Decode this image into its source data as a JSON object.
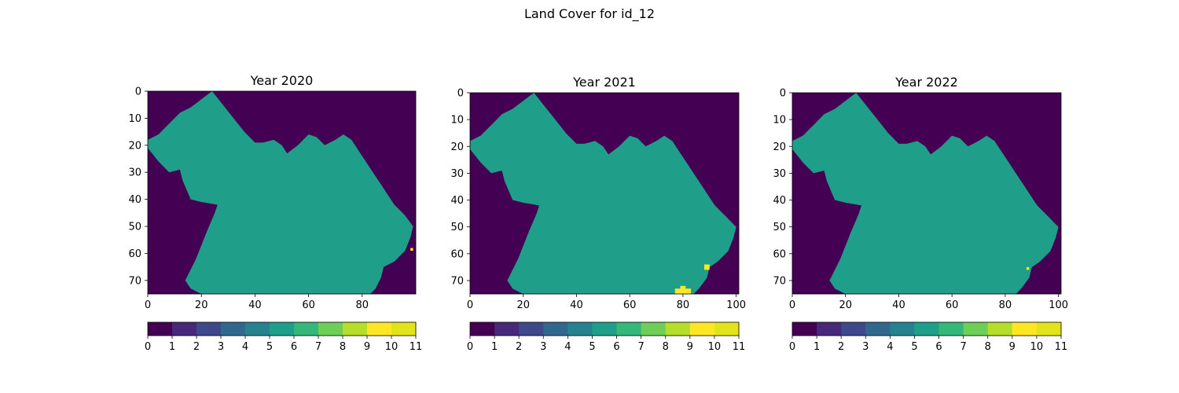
{
  "figure_title": "Land Cover for id_12",
  "chart_data": [
    {
      "type": "heatmap",
      "title": "Year 2020",
      "xlim": [
        0,
        100
      ],
      "ylim": [
        75,
        0
      ],
      "xticks": [
        0,
        20,
        40,
        60,
        80
      ],
      "yticks": [
        0,
        10,
        20,
        30,
        40,
        50,
        60,
        70
      ],
      "background_class": 0,
      "region_class": 5,
      "region_outline": [
        [
          24,
          0
        ],
        [
          28,
          5
        ],
        [
          32,
          10
        ],
        [
          36,
          15
        ],
        [
          40,
          19
        ],
        [
          43,
          19
        ],
        [
          47,
          18
        ],
        [
          50,
          20
        ],
        [
          52,
          23
        ],
        [
          56,
          20
        ],
        [
          60,
          16
        ],
        [
          63,
          17
        ],
        [
          66,
          20
        ],
        [
          70,
          18
        ],
        [
          73,
          16
        ],
        [
          76,
          18
        ],
        [
          80,
          24
        ],
        [
          84,
          30
        ],
        [
          88,
          36
        ],
        [
          92,
          42
        ],
        [
          96,
          46
        ],
        [
          99,
          50
        ],
        [
          98,
          54
        ],
        [
          96,
          59
        ],
        [
          92,
          63
        ],
        [
          88,
          65
        ],
        [
          87,
          69
        ],
        [
          85,
          73
        ],
        [
          83,
          75
        ],
        [
          20,
          75
        ],
        [
          16,
          73
        ],
        [
          14,
          70
        ],
        [
          18,
          62
        ],
        [
          22,
          52
        ],
        [
          25,
          45
        ],
        [
          26,
          42
        ],
        [
          20,
          41
        ],
        [
          16,
          40
        ],
        [
          13,
          33
        ],
        [
          12,
          29
        ],
        [
          8,
          30
        ],
        [
          4,
          26
        ],
        [
          0,
          21
        ],
        [
          0,
          18
        ],
        [
          4,
          16
        ],
        [
          8,
          12
        ],
        [
          12,
          8
        ],
        [
          16,
          6
        ],
        [
          20,
          3
        ]
      ],
      "highlights": [
        {
          "x": 98,
          "y": 58,
          "w": 1,
          "h": 1,
          "class": 10
        }
      ],
      "colorbar": {
        "ticks": [
          0,
          1,
          2,
          3,
          4,
          5,
          6,
          7,
          8,
          9,
          10,
          11
        ],
        "min": 0,
        "max": 11
      }
    },
    {
      "type": "heatmap",
      "title": "Year 2021",
      "xlim": [
        0,
        101
      ],
      "ylim": [
        75,
        0
      ],
      "xticks": [
        0,
        20,
        40,
        60,
        80,
        100
      ],
      "yticks": [
        0,
        10,
        20,
        30,
        40,
        50,
        60,
        70
      ],
      "background_class": 0,
      "region_class": 5,
      "region_outline": [
        [
          24,
          0
        ],
        [
          28,
          5
        ],
        [
          32,
          10
        ],
        [
          36,
          15
        ],
        [
          40,
          19
        ],
        [
          43,
          19
        ],
        [
          47,
          18
        ],
        [
          50,
          20
        ],
        [
          52,
          23
        ],
        [
          56,
          20
        ],
        [
          60,
          16
        ],
        [
          63,
          17
        ],
        [
          66,
          20
        ],
        [
          70,
          18
        ],
        [
          73,
          16
        ],
        [
          76,
          18
        ],
        [
          80,
          24
        ],
        [
          84,
          30
        ],
        [
          88,
          36
        ],
        [
          92,
          42
        ],
        [
          96,
          46
        ],
        [
          100,
          50
        ],
        [
          99,
          54
        ],
        [
          97,
          59
        ],
        [
          93,
          63
        ],
        [
          90,
          65
        ],
        [
          89,
          69
        ],
        [
          86,
          73
        ],
        [
          84,
          75
        ],
        [
          20,
          75
        ],
        [
          16,
          73
        ],
        [
          14,
          70
        ],
        [
          18,
          62
        ],
        [
          22,
          52
        ],
        [
          25,
          45
        ],
        [
          26,
          42
        ],
        [
          20,
          41
        ],
        [
          16,
          40
        ],
        [
          13,
          33
        ],
        [
          12,
          29
        ],
        [
          8,
          30
        ],
        [
          4,
          26
        ],
        [
          0,
          21
        ],
        [
          0,
          18
        ],
        [
          4,
          16
        ],
        [
          8,
          12
        ],
        [
          12,
          8
        ],
        [
          16,
          6
        ],
        [
          20,
          3
        ]
      ],
      "highlights": [
        {
          "x": 88,
          "y": 64,
          "w": 2,
          "h": 2,
          "class": 10
        },
        {
          "x": 79,
          "y": 72,
          "w": 2,
          "h": 2,
          "class": 10
        },
        {
          "x": 77,
          "y": 73,
          "w": 6,
          "h": 2,
          "class": 10
        }
      ],
      "colorbar": {
        "ticks": [
          0,
          1,
          2,
          3,
          4,
          5,
          6,
          7,
          8,
          9,
          10,
          11
        ],
        "min": 0,
        "max": 11
      }
    },
    {
      "type": "heatmap",
      "title": "Year 2022",
      "xlim": [
        0,
        101
      ],
      "ylim": [
        75,
        0
      ],
      "xticks": [
        0,
        20,
        40,
        60,
        80,
        100
      ],
      "yticks": [
        0,
        10,
        20,
        30,
        40,
        50,
        60,
        70
      ],
      "background_class": 0,
      "region_class": 5,
      "region_outline": [
        [
          24,
          0
        ],
        [
          28,
          5
        ],
        [
          32,
          10
        ],
        [
          36,
          15
        ],
        [
          40,
          19
        ],
        [
          43,
          19
        ],
        [
          47,
          18
        ],
        [
          50,
          20
        ],
        [
          52,
          23
        ],
        [
          56,
          20
        ],
        [
          60,
          16
        ],
        [
          63,
          17
        ],
        [
          66,
          20
        ],
        [
          70,
          18
        ],
        [
          73,
          16
        ],
        [
          76,
          18
        ],
        [
          80,
          24
        ],
        [
          84,
          30
        ],
        [
          88,
          36
        ],
        [
          92,
          42
        ],
        [
          96,
          46
        ],
        [
          100,
          50
        ],
        [
          99,
          54
        ],
        [
          97,
          59
        ],
        [
          93,
          63
        ],
        [
          90,
          65
        ],
        [
          89,
          69
        ],
        [
          86,
          73
        ],
        [
          84,
          75
        ],
        [
          20,
          75
        ],
        [
          16,
          73
        ],
        [
          14,
          70
        ],
        [
          18,
          62
        ],
        [
          22,
          52
        ],
        [
          25,
          45
        ],
        [
          26,
          42
        ],
        [
          20,
          41
        ],
        [
          16,
          40
        ],
        [
          13,
          33
        ],
        [
          12,
          29
        ],
        [
          8,
          30
        ],
        [
          4,
          26
        ],
        [
          0,
          21
        ],
        [
          0,
          18
        ],
        [
          4,
          16
        ],
        [
          8,
          12
        ],
        [
          12,
          8
        ],
        [
          16,
          6
        ],
        [
          20,
          3
        ]
      ],
      "highlights": [
        {
          "x": 88,
          "y": 65,
          "w": 1,
          "h": 1,
          "class": 10
        }
      ],
      "colorbar": {
        "ticks": [
          0,
          1,
          2,
          3,
          4,
          5,
          6,
          7,
          8,
          9,
          10,
          11
        ],
        "min": 0,
        "max": 11
      }
    }
  ],
  "colormap": [
    "#440154",
    "#482878",
    "#3e4989",
    "#31688e",
    "#26828e",
    "#1f9e89",
    "#35b779",
    "#6ece58",
    "#b5de2b",
    "#fde725",
    "#e2e419"
  ],
  "region_color": "#26828e",
  "background_color": "#440154",
  "highlight_color": "#fde725"
}
